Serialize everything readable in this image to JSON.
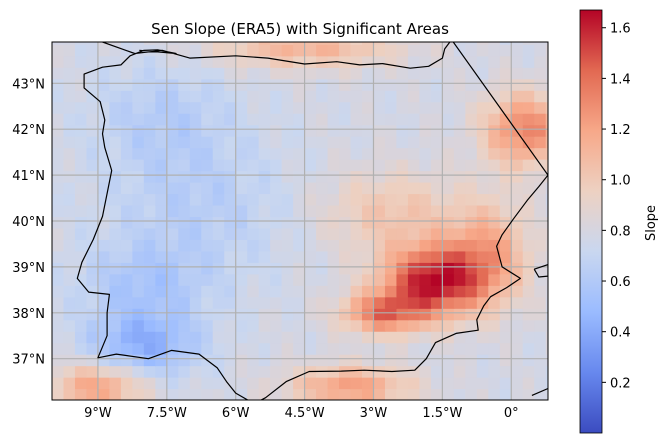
{
  "title": "Sen Slope (ERA5) with Significant Areas",
  "map": {
    "lon_range": [
      -10.0,
      0.8
    ],
    "lat_range": [
      36.1,
      43.9
    ],
    "lon_ticks": [
      -9,
      -7.5,
      -6,
      -4.5,
      -3,
      -1.5,
      0
    ],
    "lat_ticks": [
      37,
      38,
      39,
      40,
      41,
      42,
      43
    ],
    "lon_tick_labels": [
      "9°W",
      "7.5°W",
      "6°W",
      "4.5°W",
      "3°W",
      "1.5°W",
      "0°"
    ],
    "lat_tick_labels": [
      "37°N",
      "38°N",
      "39°N",
      "40°N",
      "41°N",
      "42°N",
      "43°N"
    ],
    "grid": true,
    "cell_size_deg": 0.25,
    "coastline_color": "#000000",
    "gridline_color": "#b0b0b0"
  },
  "colorbar": {
    "label": "Slope",
    "vmin": 0.0,
    "vmax": 1.67,
    "ticks": [
      0.2,
      0.4,
      0.6,
      0.8,
      1.0,
      1.2,
      1.4,
      1.6
    ],
    "tick_labels": [
      "0.2",
      "0.4",
      "0.6",
      "0.8",
      "1.0",
      "1.2",
      "1.4",
      "1.6"
    ],
    "colormap": "coolwarm",
    "colormap_stops": [
      "#3b4cc0",
      "#6788ee",
      "#9abbff",
      "#c9d7f0",
      "#edd1c2",
      "#f7a889",
      "#e26952",
      "#b40426"
    ]
  },
  "field_model": {
    "base": 0.78,
    "features": [
      {
        "lon": -1.7,
        "lat": 38.7,
        "amp": 0.85,
        "rlon": 1.1,
        "rlat": 0.75
      },
      {
        "lon": -2.8,
        "lat": 38.0,
        "amp": 0.55,
        "rlon": 0.9,
        "rlat": 0.45
      },
      {
        "lon": -0.5,
        "lat": 39.3,
        "amp": 0.4,
        "rlon": 0.9,
        "rlat": 1.1
      },
      {
        "lon": 0.3,
        "lat": 42.0,
        "amp": 0.55,
        "rlon": 0.9,
        "rlat": 0.8
      },
      {
        "lon": -2.6,
        "lat": 40.2,
        "amp": 0.25,
        "rlon": 1.5,
        "rlat": 0.9
      },
      {
        "lon": -3.5,
        "lat": 36.4,
        "amp": 0.45,
        "rlon": 1.3,
        "rlat": 0.45
      },
      {
        "lon": -9.0,
        "lat": 36.4,
        "amp": 0.45,
        "rlon": 1.0,
        "rlat": 0.5
      },
      {
        "lon": -4.5,
        "lat": 43.8,
        "amp": 0.35,
        "rlon": 2.0,
        "rlat": 0.45
      },
      {
        "lon": -8.0,
        "lat": 37.3,
        "amp": -0.35,
        "rlon": 1.2,
        "rlat": 0.7
      },
      {
        "lon": -8.0,
        "lat": 38.6,
        "amp": -0.2,
        "rlon": 1.4,
        "rlat": 0.9
      },
      {
        "lon": -6.8,
        "lat": 40.3,
        "amp": -0.15,
        "rlon": 2.0,
        "rlat": 1.6
      },
      {
        "lon": -7.6,
        "lat": 42.3,
        "amp": -0.15,
        "rlon": 1.5,
        "rlat": 1.2
      }
    ]
  },
  "coastline": {
    "mainland": [
      [
        -8.9,
        43.9
      ],
      [
        -8.2,
        43.65
      ],
      [
        -7.6,
        43.72
      ],
      [
        -7.0,
        43.55
      ],
      [
        -6.0,
        43.6
      ],
      [
        -5.3,
        43.55
      ],
      [
        -4.5,
        43.42
      ],
      [
        -3.8,
        43.47
      ],
      [
        -3.3,
        43.4
      ],
      [
        -2.8,
        43.43
      ],
      [
        -2.2,
        43.33
      ],
      [
        -1.8,
        43.37
      ],
      [
        -1.5,
        43.55
      ],
      [
        -1.45,
        43.75
      ],
      [
        -1.3,
        43.95
      ],
      [
        0.8,
        41.0
      ],
      [
        0.6,
        40.75
      ],
      [
        0.35,
        40.45
      ],
      [
        0.05,
        40.05
      ],
      [
        -0.2,
        39.7
      ],
      [
        -0.32,
        39.45
      ],
      [
        -0.2,
        39.0
      ],
      [
        0.2,
        38.75
      ],
      [
        -0.1,
        38.55
      ],
      [
        -0.45,
        38.35
      ],
      [
        -0.6,
        38.15
      ],
      [
        -0.75,
        37.85
      ],
      [
        -0.72,
        37.62
      ],
      [
        -1.2,
        37.55
      ],
      [
        -1.65,
        37.35
      ],
      [
        -1.85,
        37.0
      ],
      [
        -2.1,
        36.75
      ],
      [
        -2.6,
        36.72
      ],
      [
        -3.2,
        36.75
      ],
      [
        -3.7,
        36.73
      ],
      [
        -4.4,
        36.72
      ],
      [
        -4.9,
        36.5
      ],
      [
        -5.35,
        36.15
      ],
      [
        -5.6,
        36.02
      ],
      [
        -6.0,
        36.25
      ],
      [
        -6.2,
        36.5
      ],
      [
        -6.4,
        36.8
      ],
      [
        -6.8,
        37.1
      ],
      [
        -7.4,
        37.18
      ],
      [
        -7.9,
        37.0
      ],
      [
        -8.6,
        37.1
      ],
      [
        -9.0,
        37.02
      ],
      [
        -8.8,
        37.5
      ],
      [
        -8.8,
        38.0
      ],
      [
        -8.75,
        38.4
      ],
      [
        -9.2,
        38.45
      ],
      [
        -9.45,
        38.75
      ],
      [
        -9.35,
        39.1
      ],
      [
        -9.1,
        39.6
      ],
      [
        -8.9,
        40.1
      ],
      [
        -8.8,
        40.6
      ],
      [
        -8.7,
        41.1
      ],
      [
        -8.85,
        41.6
      ],
      [
        -8.9,
        41.9
      ],
      [
        -8.85,
        42.2
      ],
      [
        -8.95,
        42.6
      ],
      [
        -9.3,
        42.9
      ],
      [
        -9.3,
        43.2
      ],
      [
        -8.9,
        43.35
      ],
      [
        -8.5,
        43.4
      ],
      [
        -8.3,
        43.6
      ],
      [
        -8.0,
        43.72
      ],
      [
        -7.7,
        43.73
      ],
      [
        -7.3,
        43.65
      ],
      [
        -8.1,
        43.72
      ]
    ],
    "mallorca": [
      [
        0.5,
        38.95
      ],
      [
        0.8,
        39.05
      ],
      [
        0.8,
        38.8
      ],
      [
        0.6,
        38.78
      ],
      [
        0.5,
        38.95
      ]
    ],
    "lower_right": [
      [
        0.45,
        36.2
      ],
      [
        0.8,
        36.35
      ]
    ]
  }
}
